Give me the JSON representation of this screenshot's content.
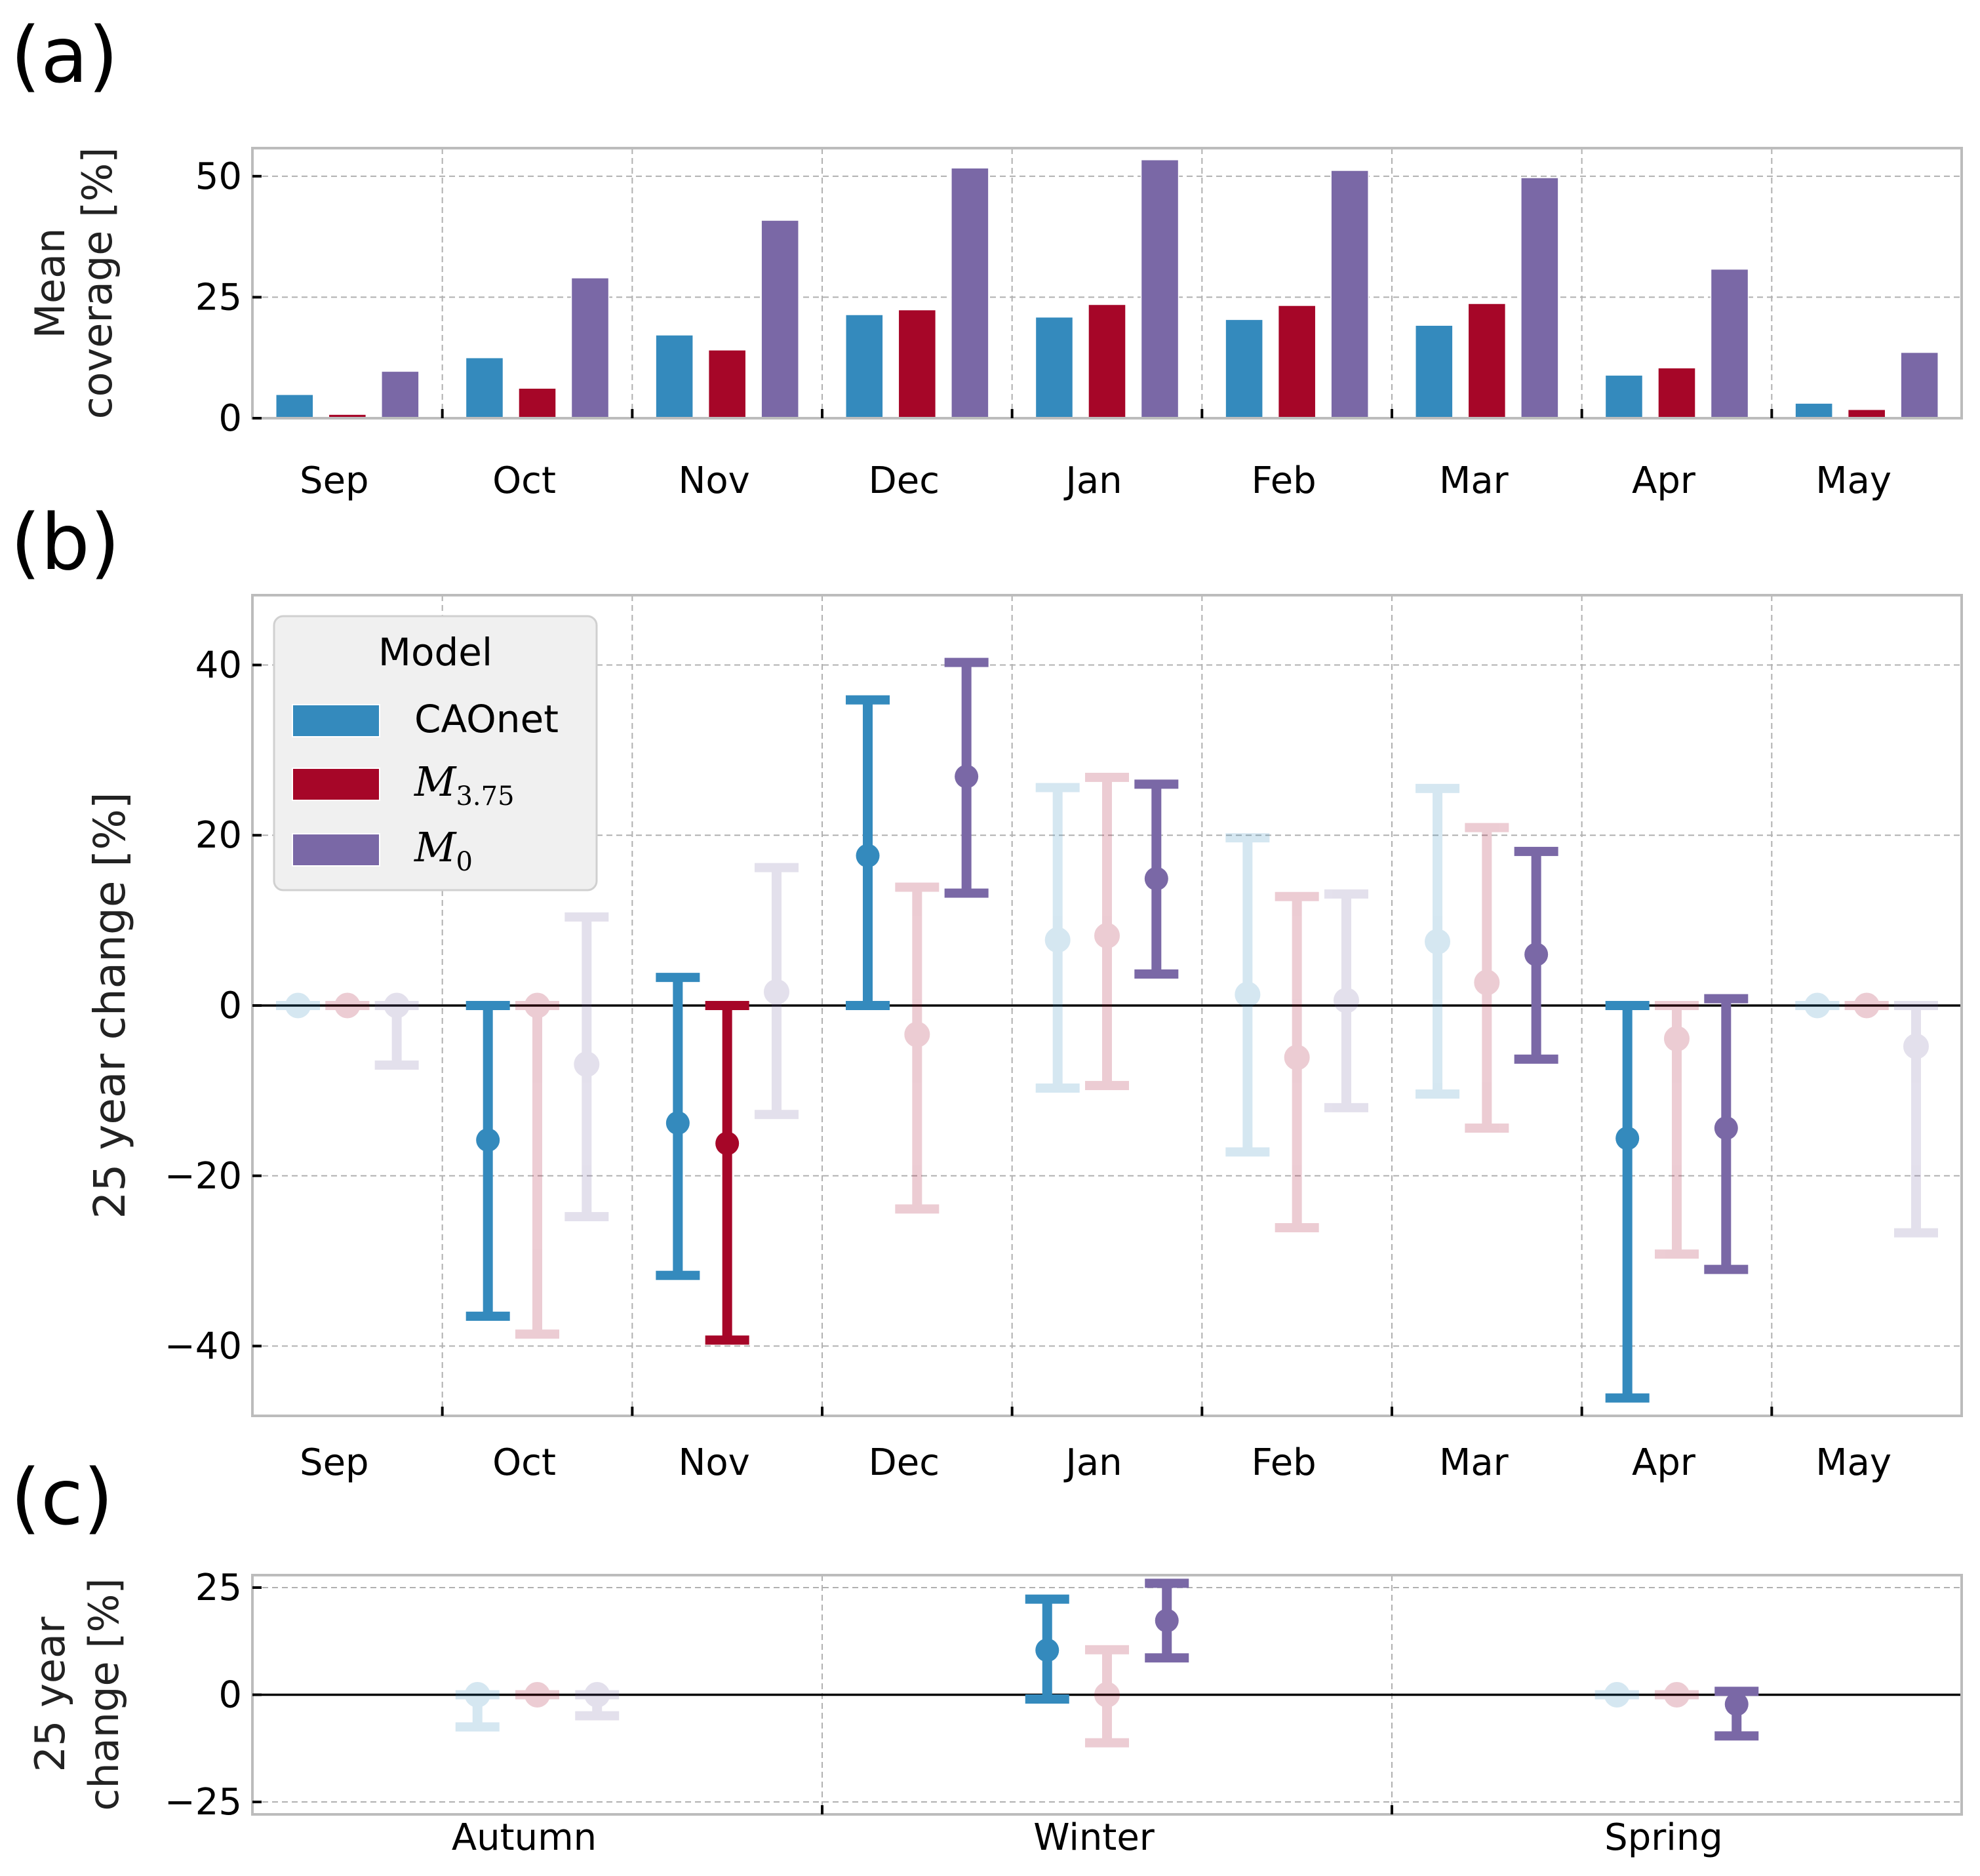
{
  "figure": {
    "panel_labels": [
      "(a)",
      "(b)",
      "(c)"
    ],
    "colors": {
      "CAOnet": "#348ABD",
      "M3.75": "#A60628",
      "M0": "#7A68A6",
      "grid": "#b0b0b0",
      "frame": "#bcbcbc",
      "legend_bg": "#f0f0f0"
    },
    "legend": {
      "title": "Model",
      "entries": [
        {
          "key": "CAOnet",
          "label": "CAOnet",
          "math": false
        },
        {
          "key": "M3.75",
          "label": "M",
          "subscript": "3.75",
          "math": true
        },
        {
          "key": "M0",
          "label": "M",
          "subscript": "0",
          "math": true
        }
      ],
      "placement": "upper-left of panel (b)"
    }
  },
  "chart_data": [
    {
      "id": "a",
      "type": "bar",
      "title": "",
      "xlabel": "",
      "ylabel": [
        "Mean",
        "coverage [%]"
      ],
      "ylim": [
        0,
        55.8
      ],
      "yticks": [
        0,
        25,
        50
      ],
      "grid": true,
      "categories": [
        "Sep",
        "Oct",
        "Nov",
        "Dec",
        "Jan",
        "Feb",
        "Mar",
        "Apr",
        "May"
      ],
      "series": [
        {
          "name": "CAOnet",
          "values": [
            4.9,
            12.5,
            17.2,
            21.4,
            20.9,
            20.4,
            19.2,
            8.9,
            3.1
          ]
        },
        {
          "name": "M3.75",
          "values": [
            0.8,
            6.2,
            14.1,
            22.4,
            23.5,
            23.3,
            23.7,
            10.4,
            1.8
          ]
        },
        {
          "name": "M0",
          "values": [
            9.7,
            29.0,
            40.9,
            51.7,
            53.4,
            51.2,
            49.7,
            30.8,
            13.6
          ]
        }
      ]
    },
    {
      "id": "b",
      "type": "errorbar",
      "title": "",
      "xlabel": "",
      "ylabel": "25 year change [%]",
      "ylim": [
        -48.2,
        48.2
      ],
      "yticks": [
        -40,
        -20,
        0,
        20,
        40
      ],
      "ytick_labels": [
        "−40",
        "−20",
        "0",
        "20",
        "40"
      ],
      "grid": true,
      "zero_line": true,
      "categories": [
        "Sep",
        "Oct",
        "Nov",
        "Dec",
        "Jan",
        "Feb",
        "Mar",
        "Apr",
        "May"
      ],
      "series": [
        {
          "name": "CAOnet",
          "values": [
            0,
            -15.8,
            -13.8,
            17.6,
            7.7,
            1.3,
            7.5,
            -15.6,
            0
          ],
          "lower": [
            0,
            -36.5,
            -31.7,
            0,
            -9.7,
            -17.2,
            -10.4,
            -46.1,
            0
          ],
          "upper": [
            0,
            0,
            3.3,
            35.9,
            25.6,
            19.7,
            25.5,
            0,
            0
          ],
          "highlighted": [
            false,
            true,
            true,
            true,
            false,
            false,
            false,
            true,
            false
          ]
        },
        {
          "name": "M3.75",
          "values": [
            0,
            0,
            -16.2,
            -3.4,
            8.2,
            -6.1,
            2.7,
            -3.9,
            0
          ],
          "lower": [
            0,
            -38.6,
            -39.3,
            -23.9,
            -9.4,
            -26.1,
            -14.4,
            -29.2,
            0
          ],
          "upper": [
            0,
            0,
            0,
            13.9,
            26.8,
            12.8,
            20.9,
            0,
            0
          ],
          "highlighted": [
            false,
            false,
            true,
            false,
            false,
            false,
            false,
            false,
            false
          ]
        },
        {
          "name": "M0",
          "values": [
            0,
            -6.9,
            1.6,
            26.9,
            14.9,
            0.6,
            6.0,
            -14.4,
            -4.8
          ],
          "lower": [
            -7.0,
            -24.8,
            -12.8,
            13.2,
            3.7,
            -12.0,
            -6.3,
            -31.0,
            -26.7
          ],
          "upper": [
            0,
            10.4,
            16.2,
            40.3,
            26.0,
            13.1,
            18.1,
            0.8,
            0
          ],
          "highlighted": [
            false,
            false,
            false,
            true,
            true,
            false,
            true,
            true,
            false
          ]
        }
      ]
    },
    {
      "id": "c",
      "type": "errorbar",
      "title": "",
      "xlabel": "",
      "ylabel": [
        "25 year",
        "change [%]"
      ],
      "ylim": [
        -27.9,
        27.9
      ],
      "yticks": [
        -25,
        0,
        25
      ],
      "ytick_labels": [
        "−25",
        "0",
        "25"
      ],
      "grid": true,
      "zero_line": true,
      "categories": [
        "Autumn",
        "Winter",
        "Spring"
      ],
      "series": [
        {
          "name": "CAOnet",
          "values": [
            0,
            10.4,
            0
          ],
          "lower": [
            -7.5,
            -1.0,
            0
          ],
          "upper": [
            0,
            22.3,
            0
          ],
          "highlighted": [
            false,
            true,
            false
          ]
        },
        {
          "name": "M3.75",
          "values": [
            0,
            0,
            0
          ],
          "lower": [
            0,
            -11.2,
            0
          ],
          "upper": [
            0,
            10.5,
            0
          ],
          "highlighted": [
            false,
            false,
            false
          ]
        },
        {
          "name": "M0",
          "values": [
            0,
            17.3,
            -2.2
          ],
          "lower": [
            -4.9,
            8.6,
            -9.6
          ],
          "upper": [
            0,
            26.0,
            0.8
          ],
          "highlighted": [
            false,
            true,
            true
          ]
        }
      ]
    }
  ]
}
